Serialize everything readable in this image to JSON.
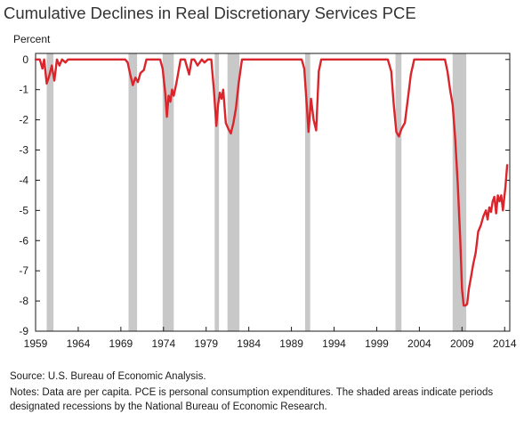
{
  "chart_data": {
    "type": "line",
    "title": "Cumulative Declines in Real Discretionary Services PCE",
    "ylabel": "Percent",
    "xlabel": "",
    "xlim": [
      1959,
      2014.6
    ],
    "ylim": [
      -9,
      0.2
    ],
    "y_ticks": [
      0,
      -1,
      -2,
      -3,
      -4,
      -5,
      -6,
      -7,
      -8,
      -9
    ],
    "x_ticks": [
      1959,
      1964,
      1969,
      1974,
      1979,
      1984,
      1989,
      1994,
      1999,
      2004,
      2009,
      2014
    ],
    "grid": false,
    "legend": "none",
    "recessions": [
      [
        1960.3,
        1961.1
      ],
      [
        1969.9,
        1970.9
      ],
      [
        1973.9,
        1975.2
      ],
      [
        1980.0,
        1980.5
      ],
      [
        1981.5,
        1982.9
      ],
      [
        1990.6,
        1991.2
      ],
      [
        2001.2,
        2001.9
      ],
      [
        2007.9,
        2009.5
      ]
    ],
    "series": [
      {
        "x": [
          1959.0,
          1959.5,
          1959.8,
          1960.0,
          1960.3,
          1960.6,
          1960.9,
          1961.2,
          1961.5,
          1961.8,
          1962.1,
          1962.5,
          1962.8,
          1963.2,
          1969.5,
          1969.8,
          1970.1,
          1970.4,
          1970.7,
          1971.0,
          1971.3,
          1971.7,
          1972.0,
          1973.6,
          1973.9,
          1974.2,
          1974.4,
          1974.6,
          1974.8,
          1975.0,
          1975.2,
          1975.5,
          1976.0,
          1976.5,
          1977.0,
          1977.3,
          1977.6,
          1978.0,
          1978.5,
          1978.8,
          1979.2,
          1979.6,
          1979.9,
          1980.2,
          1980.4,
          1980.6,
          1980.8,
          1981.0,
          1981.3,
          1981.6,
          1981.9,
          1982.2,
          1982.5,
          1982.8,
          1983.2,
          1983.7,
          1990.2,
          1990.5,
          1990.8,
          1991.0,
          1991.3,
          1991.6,
          1991.9,
          1992.2,
          1992.5,
          2000.3,
          2000.7,
          2001.0,
          2001.3,
          2001.6,
          2001.9,
          2002.3,
          2002.7,
          2003.0,
          2003.4,
          2003.8,
          2004.2,
          2004.6,
          2005.0,
          2007.0,
          2007.3,
          2007.6,
          2007.9,
          2008.2,
          2008.5,
          2008.8,
          2009.0,
          2009.2,
          2009.4,
          2009.6,
          2009.8,
          2010.0,
          2010.3,
          2010.6,
          2010.9,
          2011.2,
          2011.5,
          2011.8,
          2012.0,
          2012.2,
          2012.4,
          2012.6,
          2012.8,
          2013.0,
          2013.2,
          2013.4,
          2013.6,
          2013.8,
          2014.1,
          2014.3
        ],
        "y": [
          0,
          0,
          -0.3,
          0,
          -0.8,
          -0.55,
          -0.2,
          -0.7,
          0,
          -0.2,
          0,
          -0.1,
          0,
          0,
          0,
          -0.1,
          -0.5,
          -0.85,
          -0.6,
          -0.75,
          -0.45,
          -0.35,
          0,
          0,
          -0.3,
          -1.1,
          -1.9,
          -1.2,
          -1.4,
          -1.0,
          -1.2,
          -0.8,
          0,
          0,
          -0.5,
          0,
          0,
          -0.2,
          0,
          -0.1,
          0,
          0,
          -1.0,
          -2.2,
          -1.5,
          -1.1,
          -1.3,
          -1.0,
          -2.1,
          -2.3,
          -2.45,
          -2.1,
          -1.6,
          -0.8,
          0,
          0,
          0,
          -0.3,
          -1.5,
          -2.4,
          -1.3,
          -2.0,
          -2.35,
          -0.4,
          0,
          0,
          -0.4,
          -1.5,
          -2.4,
          -2.55,
          -2.3,
          -2.1,
          -1.2,
          -0.5,
          0,
          0,
          0,
          0,
          0,
          0,
          -0.4,
          -1.0,
          -1.5,
          -2.6,
          -4.1,
          -6.0,
          -7.6,
          -8.15,
          -8.15,
          -8.1,
          -7.6,
          -7.3,
          -6.8,
          -6.4,
          -5.7,
          -5.5,
          -5.2,
          -5.0,
          -5.3,
          -4.9,
          -5.05,
          -4.7,
          -4.55,
          -5.1,
          -4.5,
          -4.7,
          -4.5,
          -5.0,
          -4.2,
          -3.5
        ],
        "color": "#d9252b"
      }
    ]
  },
  "notes": {
    "source": "Source: U.S. Bureau of Economic Analysis.",
    "notes": "Notes: Data are per capita. PCE is personal consumption expenditures. The shaded areas indicate periods designated recessions by the National Bureau of Economic Research."
  },
  "colors": {
    "line": "#d9252b",
    "recession": "#c8c8c8",
    "axis": "#1a1a1a"
  }
}
